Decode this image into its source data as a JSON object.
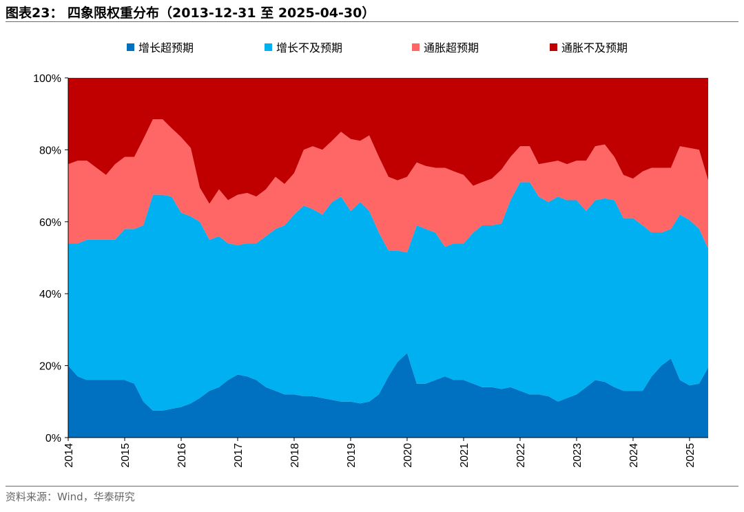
{
  "title": "图表23：  四象限权重分布（2013-12-31 至 2025-04-30）",
  "source": "资料来源：Wind，华泰研究",
  "chart_data": {
    "type": "area",
    "stacked": true,
    "normalized": true,
    "title": "",
    "xlabel": "",
    "ylabel": "",
    "ylim": [
      0,
      100
    ],
    "y_ticks": [
      "0%",
      "20%",
      "40%",
      "60%",
      "80%",
      "100%"
    ],
    "x_ticks": [
      "2014",
      "2015",
      "2016",
      "2017",
      "2018",
      "2019",
      "2020",
      "2021",
      "2022",
      "2023",
      "2024",
      "2025"
    ],
    "xlim": [
      2014.0,
      2025.33
    ],
    "legend_position": "top",
    "grid": false,
    "x": [
      2014.0,
      2014.17,
      2014.33,
      2014.5,
      2014.67,
      2014.83,
      2015.0,
      2015.17,
      2015.33,
      2015.5,
      2015.67,
      2015.83,
      2016.0,
      2016.17,
      2016.33,
      2016.5,
      2016.67,
      2016.83,
      2017.0,
      2017.17,
      2017.33,
      2017.5,
      2017.67,
      2017.83,
      2018.0,
      2018.17,
      2018.33,
      2018.5,
      2018.67,
      2018.83,
      2019.0,
      2019.17,
      2019.33,
      2019.5,
      2019.67,
      2019.83,
      2020.0,
      2020.17,
      2020.33,
      2020.5,
      2020.67,
      2020.83,
      2021.0,
      2021.17,
      2021.33,
      2021.5,
      2021.67,
      2021.83,
      2022.0,
      2022.17,
      2022.33,
      2022.5,
      2022.67,
      2022.83,
      2023.0,
      2023.17,
      2023.33,
      2023.5,
      2023.67,
      2023.83,
      2024.0,
      2024.17,
      2024.33,
      2024.5,
      2024.67,
      2024.83,
      2025.0,
      2025.17,
      2025.33
    ],
    "series": [
      {
        "name": "增长超预期",
        "color": "#0070c0",
        "values": [
          20,
          17,
          16,
          16,
          16,
          16,
          16,
          15,
          10,
          7.5,
          7.5,
          8,
          8.5,
          9.5,
          11,
          13,
          14,
          16,
          17.5,
          17,
          16,
          14,
          13,
          12,
          12,
          11.5,
          11.5,
          11,
          10.5,
          10,
          10,
          9.5,
          10,
          12,
          17,
          21,
          23.5,
          15,
          15,
          16,
          17,
          16,
          16,
          15,
          14,
          14,
          13.5,
          14,
          13,
          12,
          12,
          11.5,
          10,
          11,
          12,
          14,
          16,
          15.5,
          14,
          13,
          13,
          13,
          17,
          20,
          22,
          16,
          14.5,
          15,
          19.5
        ]
      },
      {
        "name": "增长不及预期",
        "color": "#00b0f0",
        "values": [
          34,
          37,
          39,
          39,
          39,
          39,
          42,
          43,
          49,
          60,
          60,
          59,
          54,
          52,
          49,
          42,
          42,
          38,
          36,
          37,
          38,
          42,
          45,
          47,
          50,
          53,
          52,
          51,
          55,
          57,
          53,
          56,
          53,
          45,
          35,
          31,
          28,
          44,
          43,
          41,
          36,
          38,
          38,
          42,
          45,
          45,
          46,
          52,
          58,
          59,
          55,
          54,
          57,
          55,
          54,
          49,
          50,
          51,
          52,
          48,
          48,
          46,
          40,
          37,
          36,
          46,
          46,
          43,
          33
        ]
      },
      {
        "name": "通胀超预期",
        "color": "#ff6666",
        "values": [
          22,
          23,
          22,
          20,
          18,
          21,
          20,
          20,
          24,
          21,
          21,
          19,
          21,
          19,
          9.5,
          10,
          13,
          12,
          14,
          14,
          13,
          13,
          14.5,
          11.5,
          11.5,
          15.5,
          17.5,
          18,
          17,
          18,
          20,
          17,
          21,
          21,
          20.5,
          19.5,
          21,
          17.5,
          17.5,
          18,
          22,
          20,
          19,
          13,
          12,
          13,
          15,
          12,
          10,
          10,
          9,
          11,
          10,
          10,
          11,
          14,
          15,
          15,
          12,
          12,
          11,
          15,
          18,
          18,
          17,
          19,
          20,
          22,
          19
        ]
      },
      {
        "name": "通胀不及预期",
        "color": "#c00000",
        "values": [
          24,
          23,
          23,
          25,
          27,
          24,
          22,
          22,
          17,
          11.5,
          11.5,
          14,
          16.5,
          19.5,
          30.5,
          35,
          31,
          34,
          32.5,
          32,
          33,
          31,
          27.5,
          29.5,
          26.5,
          20,
          19,
          20,
          17.5,
          15,
          17,
          17.5,
          16,
          22,
          27.5,
          28.5,
          27.5,
          23.5,
          24.5,
          25,
          25,
          26,
          27,
          30,
          29,
          28,
          25.5,
          22,
          19,
          19,
          24,
          23.5,
          23,
          24,
          23,
          23,
          19,
          18.5,
          22,
          27,
          28,
          26,
          25,
          25,
          25,
          19,
          19.5,
          20,
          28.5
        ]
      }
    ]
  }
}
